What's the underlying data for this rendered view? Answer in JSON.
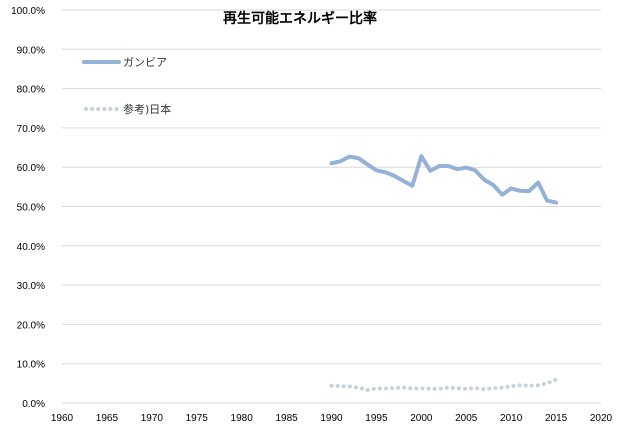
{
  "chart_data": {
    "type": "line",
    "title": "再生可能エネルギー比率",
    "xlabel": "",
    "ylabel": "",
    "xlim": [
      1960,
      2020
    ],
    "ylim": [
      0,
      100
    ],
    "x_ticks": [
      "1960",
      "1965",
      "1970",
      "1975",
      "1980",
      "1985",
      "1990",
      "1995",
      "2000",
      "2005",
      "2010",
      "2015",
      "2020"
    ],
    "y_ticks": [
      "0.0%",
      "10.0%",
      "20.0%",
      "30.0%",
      "40.0%",
      "50.0%",
      "60.0%",
      "70.0%",
      "80.0%",
      "90.0%",
      "100.0%"
    ],
    "grid": "horizontal",
    "legend_position": "top-left",
    "x": [
      1990,
      1991,
      1992,
      1993,
      1994,
      1995,
      1996,
      1997,
      1998,
      1999,
      2000,
      2001,
      2002,
      2003,
      2004,
      2005,
      2006,
      2007,
      2008,
      2009,
      2010,
      2011,
      2012,
      2013,
      2014,
      2015
    ],
    "series": [
      {
        "name": "ガンビア",
        "color": "#94B1D8",
        "style": "solid",
        "values": [
          61.0,
          61.5,
          62.7,
          62.3,
          60.7,
          59.2,
          58.7,
          57.8,
          56.5,
          55.3,
          62.8,
          59.1,
          60.3,
          60.3,
          59.5,
          59.9,
          59.2,
          56.8,
          55.5,
          53.0,
          54.6,
          54.0,
          53.9,
          56.1,
          51.5,
          51.0
        ]
      },
      {
        "name": "参考)日本",
        "color": "#C8D2DC",
        "style": "dotted",
        "values": [
          4.4,
          4.3,
          4.2,
          3.9,
          3.3,
          3.7,
          3.7,
          3.8,
          3.9,
          3.7,
          3.7,
          3.6,
          3.6,
          3.9,
          3.8,
          3.6,
          3.8,
          3.5,
          3.8,
          3.9,
          4.3,
          4.5,
          4.4,
          4.5,
          5.0,
          6.0
        ]
      }
    ]
  }
}
